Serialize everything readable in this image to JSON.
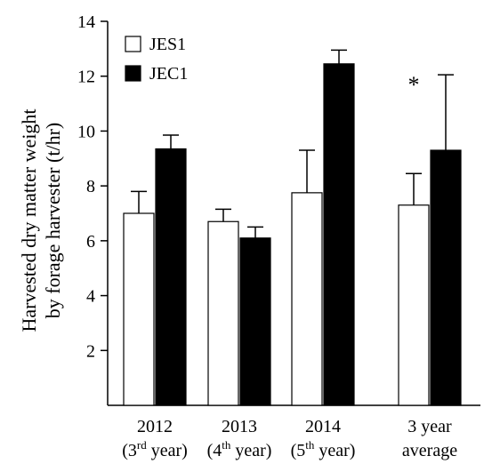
{
  "chart_data": {
    "type": "bar",
    "title": "",
    "ylabel_lines": [
      "Harvested dry matter weight",
      "by forage harvester (t/hr)"
    ],
    "xlabel": "",
    "ylim": [
      0,
      14
    ],
    "yticks": [
      2,
      4,
      6,
      8,
      10,
      12,
      14
    ],
    "categories": [
      {
        "year": "2012",
        "prefix": "(3",
        "sup": "rd",
        "suffix": " year)"
      },
      {
        "year": "2013",
        "prefix": "(4",
        "sup": "th",
        "suffix": " year)"
      },
      {
        "year": "2014",
        "prefix": "(5",
        "sup": "th",
        "suffix": " year)"
      },
      {
        "year": "3 year",
        "prefix": "average",
        "sup": "",
        "suffix": ""
      }
    ],
    "series": [
      {
        "name": "JES1",
        "color": "#ffffff",
        "values": [
          7.0,
          6.7,
          7.75,
          7.3
        ],
        "errors": [
          0.8,
          0.45,
          1.55,
          1.15
        ]
      },
      {
        "name": "JEC1",
        "color": "#000000",
        "values": [
          9.35,
          6.1,
          12.45,
          9.3
        ],
        "errors": [
          0.5,
          0.4,
          0.5,
          2.75
        ]
      }
    ],
    "annotations": [
      {
        "text": "*",
        "category_index": 3
      }
    ],
    "legend_position": "top-left"
  }
}
